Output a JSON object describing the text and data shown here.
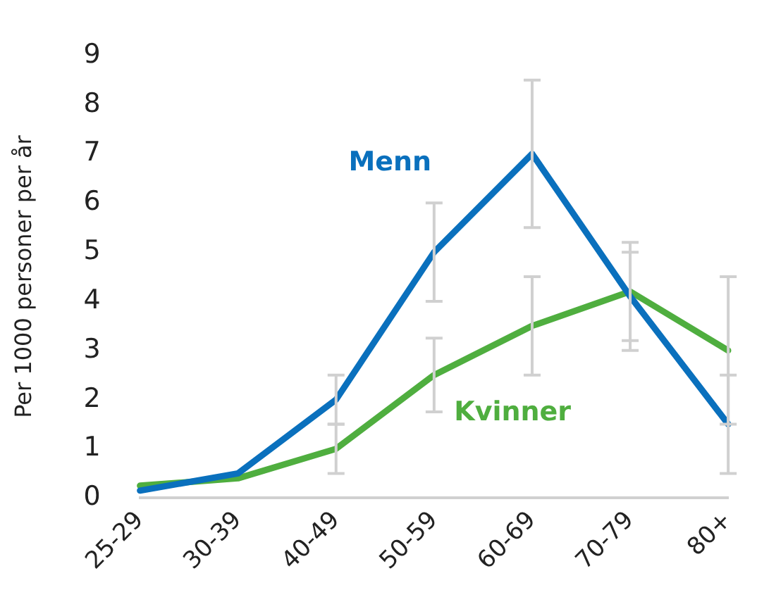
{
  "chart_data": {
    "type": "line",
    "ylabel": "Per 1000 personer per år",
    "categories": [
      "25-29",
      "30-39",
      "40-49",
      "50-59",
      "60-69",
      "70-79",
      "80+"
    ],
    "series": [
      {
        "name": "Menn",
        "color": "#0a70bd",
        "values": [
          0.15,
          0.5,
          2,
          5,
          7,
          4.1,
          1.5
        ],
        "errors": [
          null,
          null,
          0.5,
          1,
          1.5,
          [
            3.0,
            5.2
          ],
          1
        ]
      },
      {
        "name": "Kvinner",
        "color": "#4fae3f",
        "values": [
          0.25,
          0.4,
          1,
          2.5,
          3.5,
          4.2,
          3
        ],
        "errors": [
          null,
          null,
          0.5,
          0.75,
          1,
          [
            3.2,
            5.0
          ],
          1.5
        ]
      }
    ],
    "ylim": [
      0,
      9
    ],
    "yticks": [
      0,
      1,
      2,
      3,
      4,
      5,
      6,
      7,
      8,
      9
    ],
    "grid": false,
    "legend": false,
    "marker": "none",
    "line_style": "solid"
  }
}
